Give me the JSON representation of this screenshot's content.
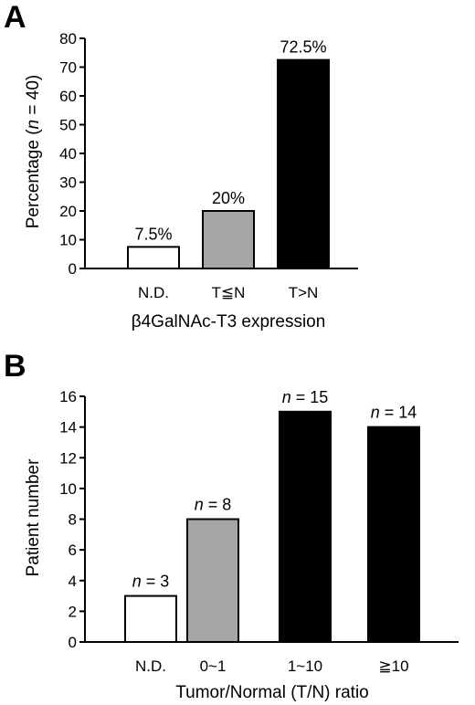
{
  "chart_data": [
    {
      "panel_label": "A",
      "type": "bar",
      "categories": [
        "N.D.",
        "T≦N",
        "T>N"
      ],
      "values": [
        7.5,
        20,
        72.5
      ],
      "data_labels": [
        "7.5%",
        "20%",
        "72.5%"
      ],
      "bar_colors": [
        "#ffffff",
        "#a6a6a6",
        "#000000"
      ],
      "ylim": [
        0,
        80
      ],
      "yticks": [
        "0",
        "10",
        "20",
        "30",
        "40",
        "50",
        "60",
        "70",
        "80"
      ],
      "ylabel_pre": "Percentage (",
      "ylabel_n": "n",
      "ylabel_post": " = 40)",
      "xlabel": "β4GalNAc-T3 expression"
    },
    {
      "panel_label": "B",
      "type": "bar",
      "categories": [
        "N.D.",
        "0~1",
        "1~10",
        "≧10"
      ],
      "values": [
        3,
        8,
        15,
        14
      ],
      "data_label_n": "n",
      "data_labels": [
        " = 3",
        " = 8",
        " = 15",
        " = 14"
      ],
      "bar_colors": [
        "#ffffff",
        "#a6a6a6",
        "#000000",
        "#000000"
      ],
      "ylim": [
        0,
        16
      ],
      "yticks": [
        "0",
        "2",
        "4",
        "6",
        "8",
        "10",
        "12",
        "14",
        "16"
      ],
      "ylabel": "Patient number",
      "xlabel": "Tumor/Normal (T/N) ratio"
    }
  ]
}
